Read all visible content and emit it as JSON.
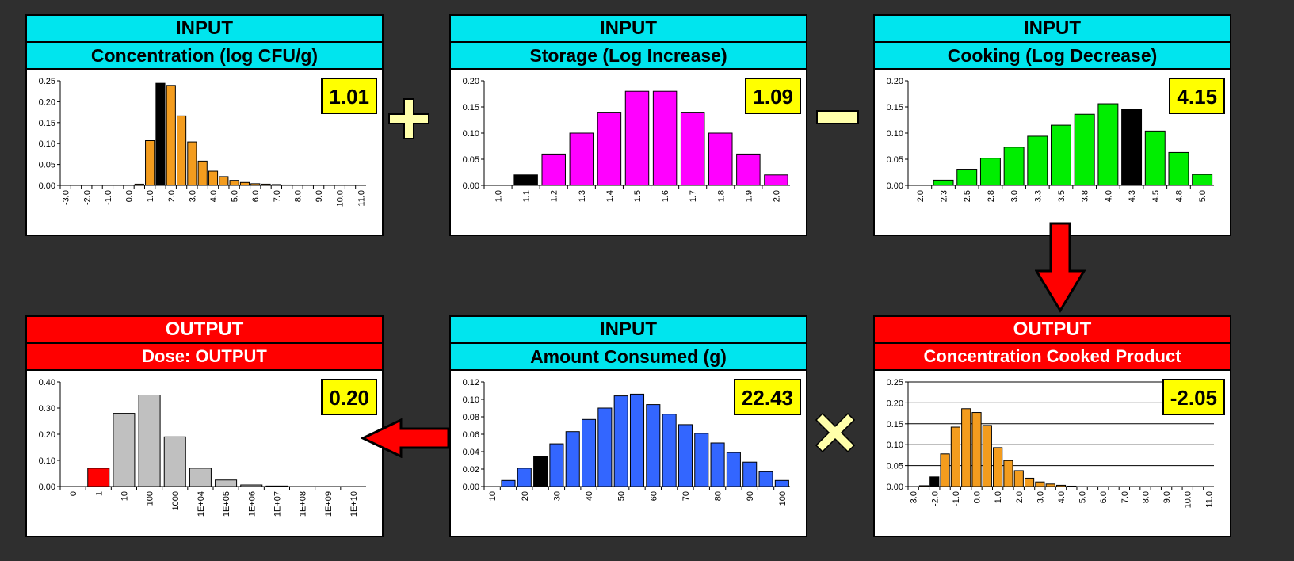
{
  "panels": [
    {
      "id": "concentration",
      "kind": "input",
      "header": "INPUT",
      "subheader": "Concentration (log CFU/g)",
      "value": "1.01",
      "chart_data": {
        "type": "bar",
        "categories": [
          "-3.0",
          "",
          "-2.0",
          "",
          "-1.0",
          "",
          "0.0",
          "",
          "1.0",
          "",
          "2.0",
          "",
          "3.0",
          "",
          "4.0",
          "",
          "5.0",
          "",
          "6.0",
          "",
          "7.0",
          "",
          "8.0",
          "",
          "9.0",
          "",
          "10.0",
          "",
          "11.0"
        ],
        "values": [
          0,
          0,
          0,
          0,
          0,
          0,
          0,
          0.003,
          0.107,
          0.244,
          0.239,
          0.166,
          0.104,
          0.058,
          0.034,
          0.021,
          0.012,
          0.007,
          0.004,
          0.003,
          0.002,
          0.001,
          0,
          0,
          0,
          0,
          0,
          0,
          0
        ],
        "highlight_index": 9,
        "bar_color": "#f39c1e",
        "highlight_color": "#000000",
        "ylim": [
          0,
          0.25
        ],
        "yticks": [
          "0.00",
          "0.05",
          "0.10",
          "0.15",
          "0.20",
          "0.25"
        ],
        "grid": false
      }
    },
    {
      "id": "storage",
      "kind": "input",
      "header": "INPUT",
      "subheader": "Storage (Log Increase)",
      "value": "1.09",
      "chart_data": {
        "type": "bar",
        "categories": [
          "1.0",
          "1.1",
          "1.2",
          "1.3",
          "1.4",
          "1.5",
          "1.6",
          "1.7",
          "1.8",
          "1.9",
          "2.0"
        ],
        "values": [
          0,
          0.02,
          0.06,
          0.1,
          0.14,
          0.18,
          0.18,
          0.14,
          0.1,
          0.06,
          0.02
        ],
        "highlight_index": 1,
        "bar_color": "#ff00ff",
        "highlight_color": "#000000",
        "ylim": [
          0,
          0.2
        ],
        "yticks": [
          "0.00",
          "0.05",
          "0.10",
          "0.15",
          "0.20"
        ],
        "grid": false
      }
    },
    {
      "id": "cooking",
      "kind": "input",
      "header": "INPUT",
      "subheader": "Cooking (Log Decrease)",
      "value": "4.15",
      "chart_data": {
        "type": "bar",
        "categories": [
          "2.0",
          "2.3",
          "2.5",
          "2.8",
          "3.0",
          "3.3",
          "3.5",
          "3.8",
          "4.0",
          "4.3",
          "4.5",
          "4.8",
          "5.0"
        ],
        "values": [
          0,
          0.01,
          0.031,
          0.052,
          0.073,
          0.094,
          0.115,
          0.136,
          0.156,
          0.146,
          0.104,
          0.063,
          0.021
        ],
        "highlight_index": 9,
        "bar_color": "#00ee00",
        "highlight_color": "#000000",
        "ylim": [
          0,
          0.2
        ],
        "yticks": [
          "0.00",
          "0.05",
          "0.10",
          "0.15",
          "0.20"
        ],
        "grid": false
      }
    },
    {
      "id": "dose",
      "kind": "output",
      "header": "OUTPUT",
      "subheader": "Dose: OUTPUT",
      "value": "0.20",
      "chart_data": {
        "type": "bar",
        "categories": [
          "0",
          "1",
          "10",
          "100",
          "1000",
          "1E+04",
          "1E+05",
          "1E+06",
          "1E+07",
          "1E+08",
          "1E+09",
          "1E+10"
        ],
        "values": [
          0,
          0.07,
          0.28,
          0.35,
          0.19,
          0.07,
          0.025,
          0.006,
          0.002,
          0,
          0,
          0
        ],
        "highlight_index": 1,
        "bar_color": "#c0c0c0",
        "highlight_color": "#ff0000",
        "ylim": [
          0,
          0.4
        ],
        "yticks": [
          "0.00",
          "0.10",
          "0.20",
          "0.30",
          "0.40"
        ],
        "grid": false
      }
    },
    {
      "id": "amount",
      "kind": "input",
      "header": "INPUT",
      "subheader": "Amount Consumed (g)",
      "value": "22.43",
      "chart_data": {
        "type": "bar",
        "categories": [
          "10",
          "",
          "20",
          "",
          "30",
          "",
          "40",
          "",
          "50",
          "",
          "60",
          "",
          "70",
          "",
          "80",
          "",
          "90",
          "",
          "100"
        ],
        "values": [
          0,
          0.007,
          0.021,
          0.035,
          0.049,
          0.063,
          0.077,
          0.09,
          0.104,
          0.106,
          0.094,
          0.083,
          0.071,
          0.061,
          0.05,
          0.039,
          0.028,
          0.017,
          0.007
        ],
        "highlight_index": 3,
        "bar_color": "#3366ff",
        "highlight_color": "#000000",
        "ylim": [
          0,
          0.12
        ],
        "yticks": [
          "0.00",
          "0.02",
          "0.04",
          "0.06",
          "0.08",
          "0.10",
          "0.12"
        ],
        "grid": false
      }
    },
    {
      "id": "cooked",
      "kind": "output",
      "header": "OUTPUT",
      "subheader": "Concentration Cooked Product",
      "value": "-2.05",
      "chart_data": {
        "type": "bar",
        "categories": [
          "-3.0",
          "",
          "-2.0",
          "",
          "-1.0",
          "",
          "0.0",
          "",
          "1.0",
          "",
          "2.0",
          "",
          "3.0",
          "",
          "4.0",
          "",
          "5.0",
          "",
          "6.0",
          "",
          "7.0",
          "",
          "8.0",
          "",
          "9.0",
          "",
          "10.0",
          "",
          "11.0"
        ],
        "values": [
          0,
          0.002,
          0.023,
          0.078,
          0.142,
          0.186,
          0.177,
          0.146,
          0.093,
          0.062,
          0.038,
          0.02,
          0.011,
          0.006,
          0.003,
          0.001,
          0,
          0,
          0,
          0,
          0,
          0,
          0,
          0,
          0,
          0,
          0,
          0,
          0
        ],
        "highlight_index": 2,
        "bar_color": "#f39c1e",
        "highlight_color": "#000000",
        "ylim": [
          0,
          0.25
        ],
        "yticks": [
          "0.00",
          "0.05",
          "0.10",
          "0.15",
          "0.20",
          "0.25"
        ],
        "grid": true
      }
    }
  ],
  "operators": {
    "plus": "plus-icon",
    "minus": "minus-icon",
    "times": "times-icon",
    "color": "#ffffaa"
  },
  "arrows": {
    "color": "#ff0000",
    "down": "arrow-down-icon",
    "left": "arrow-left-icon"
  }
}
